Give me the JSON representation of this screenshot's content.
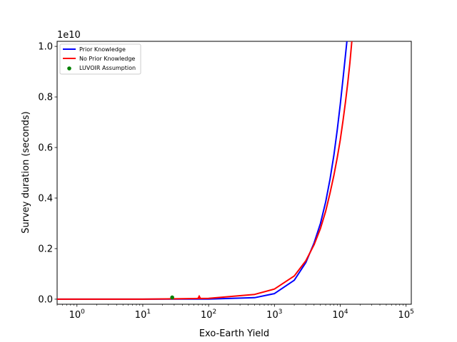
{
  "chart_data": {
    "type": "line",
    "xlabel": "Exo-Earth Yield",
    "ylabel": "Survey duration (seconds)",
    "xscale": "log",
    "xlim": [
      0.5,
      120000
    ],
    "ylim": [
      -0.02,
      1.02
    ],
    "y_offset_label": "1e10",
    "x_ticks": [
      {
        "value": 1,
        "base": "10",
        "exp": "0"
      },
      {
        "value": 10,
        "base": "10",
        "exp": "1"
      },
      {
        "value": 100,
        "base": "10",
        "exp": "2"
      },
      {
        "value": 1000,
        "base": "10",
        "exp": "3"
      },
      {
        "value": 10000,
        "base": "10",
        "exp": "4"
      },
      {
        "value": 100000,
        "base": "10",
        "exp": "5"
      }
    ],
    "y_ticks": [
      {
        "value": 0.0,
        "label": "0.0"
      },
      {
        "value": 0.2,
        "label": "0.2"
      },
      {
        "value": 0.4,
        "label": "0.4"
      },
      {
        "value": 0.6,
        "label": "0.6"
      },
      {
        "value": 0.8,
        "label": "0.8"
      },
      {
        "value": 1.0,
        "label": "1.0"
      }
    ],
    "grid": false,
    "legend_position": "upper left",
    "series": [
      {
        "name": "Prior Knowledge",
        "color": "#0000ff",
        "x": [
          0.5,
          10,
          100,
          500,
          1000,
          2000,
          3000,
          4000,
          5000,
          6000,
          7000,
          8000,
          9000,
          10000,
          11000,
          12000,
          12600
        ],
        "y": [
          0.0,
          0.0,
          0.0005,
          0.006,
          0.022,
          0.075,
          0.145,
          0.222,
          0.3,
          0.385,
          0.475,
          0.57,
          0.67,
          0.77,
          0.87,
          0.965,
          1.02
        ]
      },
      {
        "name": "No Prior Knowledge",
        "color": "#ff0000",
        "x": [
          0.5,
          10,
          100,
          500,
          1000,
          2000,
          3000,
          4000,
          5000,
          6000,
          7000,
          8000,
          9000,
          10000,
          11000,
          12000,
          13000,
          14000,
          15000
        ],
        "y": [
          0.0,
          0.0,
          0.003,
          0.019,
          0.04,
          0.092,
          0.152,
          0.215,
          0.28,
          0.348,
          0.42,
          0.49,
          0.56,
          0.63,
          0.705,
          0.78,
          0.855,
          0.935,
          1.02
        ]
      }
    ],
    "points": [
      {
        "name": "LUVOIR Assumption",
        "color": "#008000",
        "x": 28,
        "y": 0.007,
        "shape": "circle",
        "in_legend": true
      },
      {
        "color": "#ff0000",
        "x": 72,
        "y": 0.008,
        "shape": "triangle",
        "in_legend": false
      }
    ]
  }
}
